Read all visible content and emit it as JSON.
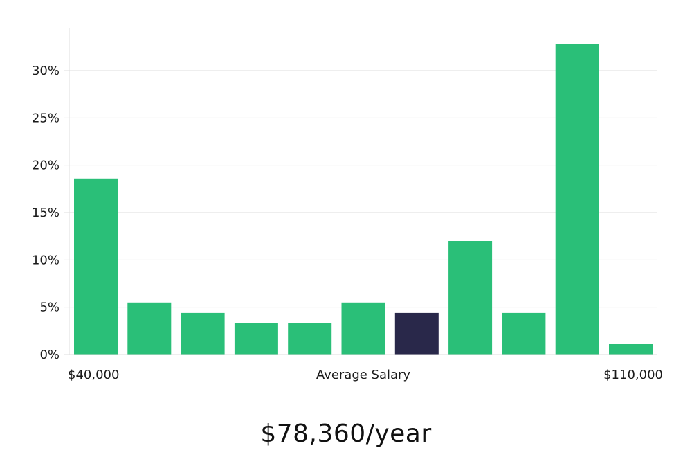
{
  "colors": {
    "bar": "#2abf78",
    "highlight": "#29284a",
    "grid": "#dddddd",
    "axis": "#dddddd",
    "text": "#1a1a1a"
  },
  "chart_data": {
    "type": "bar",
    "title": "",
    "xlabel": "Average Salary",
    "ylabel": "",
    "x_min_label": "$40,000",
    "x_max_label": "$110,000",
    "y_ticks": [
      0,
      5,
      10,
      15,
      20,
      25,
      30
    ],
    "y_tick_labels": [
      "0%",
      "5%",
      "10%",
      "15%",
      "20%",
      "25%",
      "30%"
    ],
    "ylim": [
      0,
      34
    ],
    "grid": true,
    "values": [
      18.6,
      5.5,
      4.4,
      3.3,
      3.3,
      5.5,
      4.4,
      12.0,
      4.4,
      32.8,
      1.1
    ],
    "highlight_index": 6
  },
  "salary": "$78,360/year"
}
